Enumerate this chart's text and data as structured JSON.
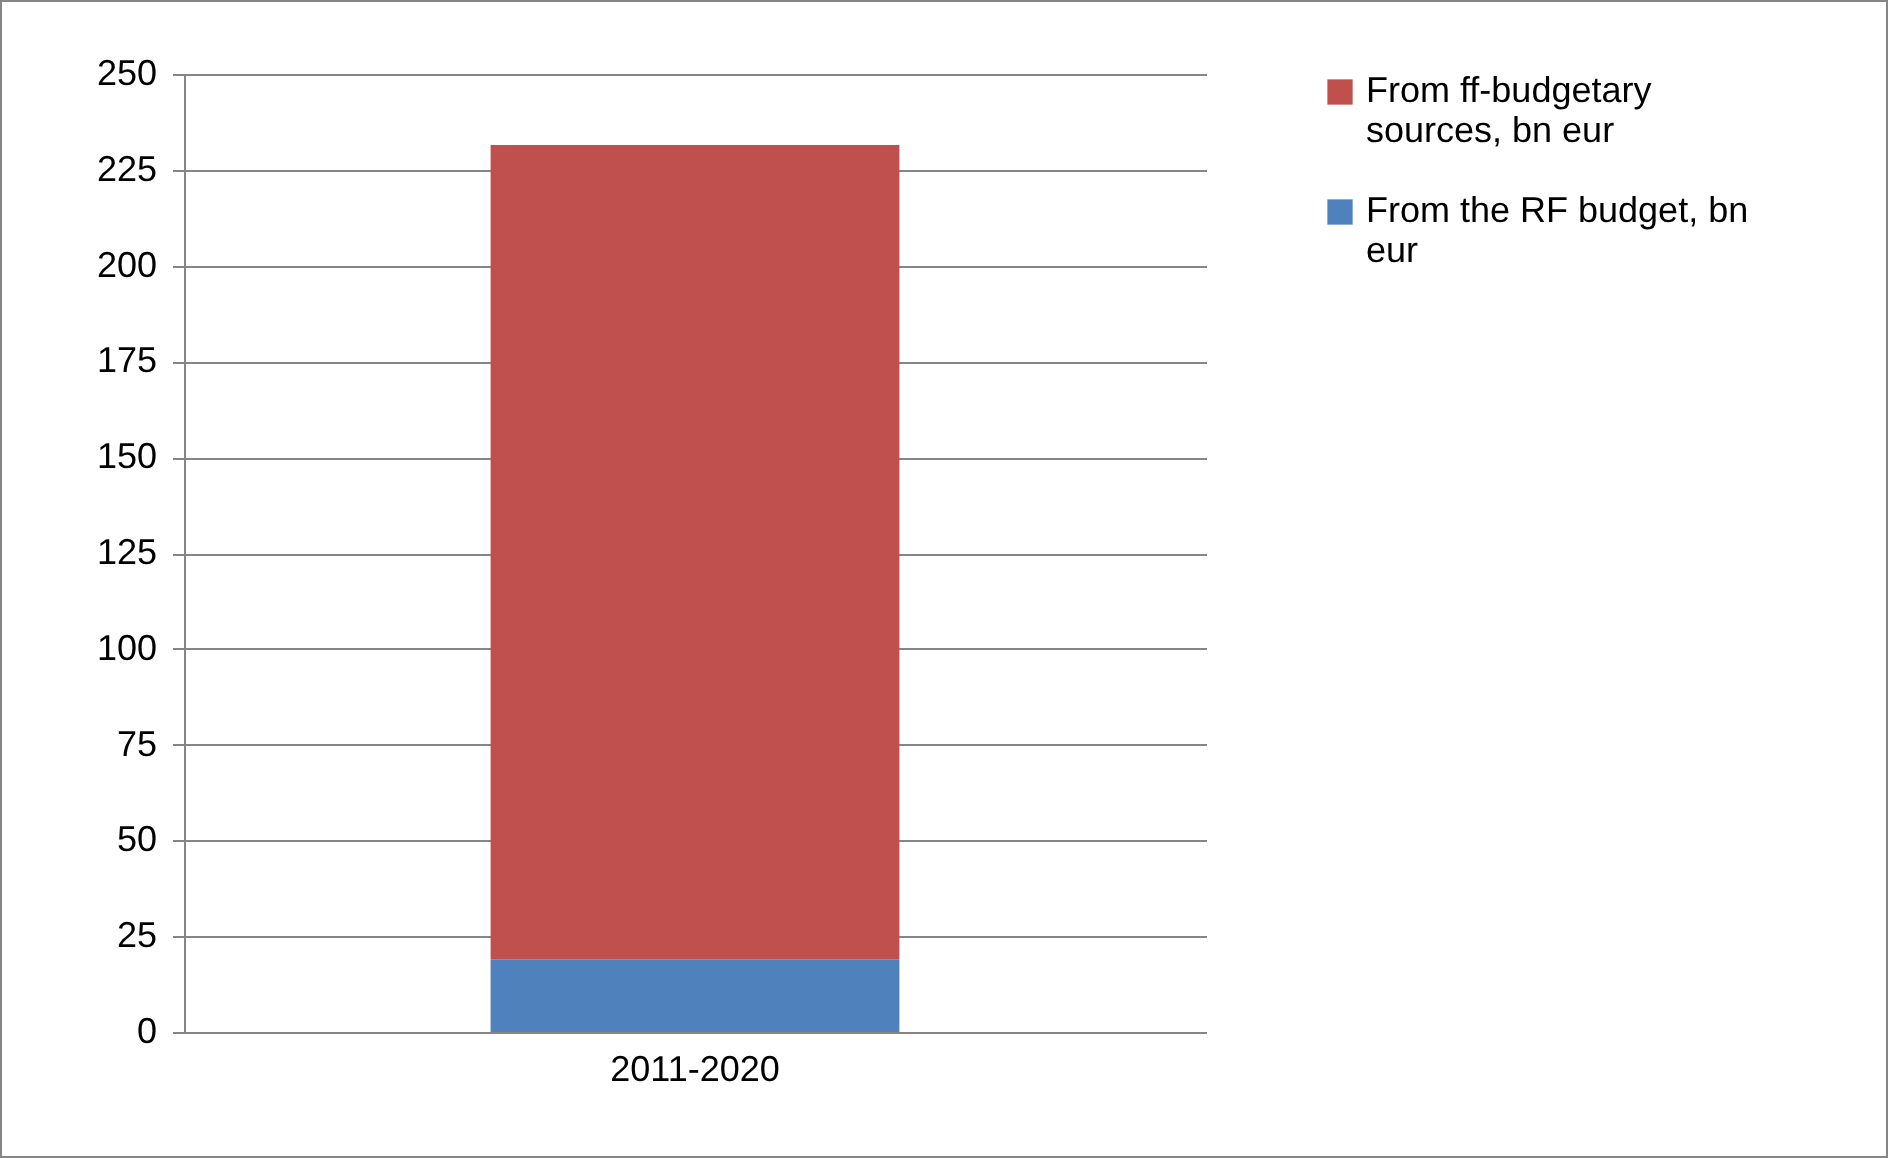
{
  "chart_data": {
    "type": "bar",
    "stacked": true,
    "categories": [
      "2011-2020"
    ],
    "series": [
      {
        "name": "From the RF budget, bn eur",
        "color": "#4f81bd",
        "values": [
          19
        ]
      },
      {
        "name": "From ff-budgetary sources, bn eur",
        "color": "#c0504d",
        "values": [
          212.5
        ]
      }
    ],
    "ylim": [
      0,
      250
    ],
    "yticks": [
      0,
      25,
      50,
      75,
      100,
      125,
      150,
      175,
      200,
      225,
      250
    ],
    "grid": "y",
    "legend": "right"
  }
}
